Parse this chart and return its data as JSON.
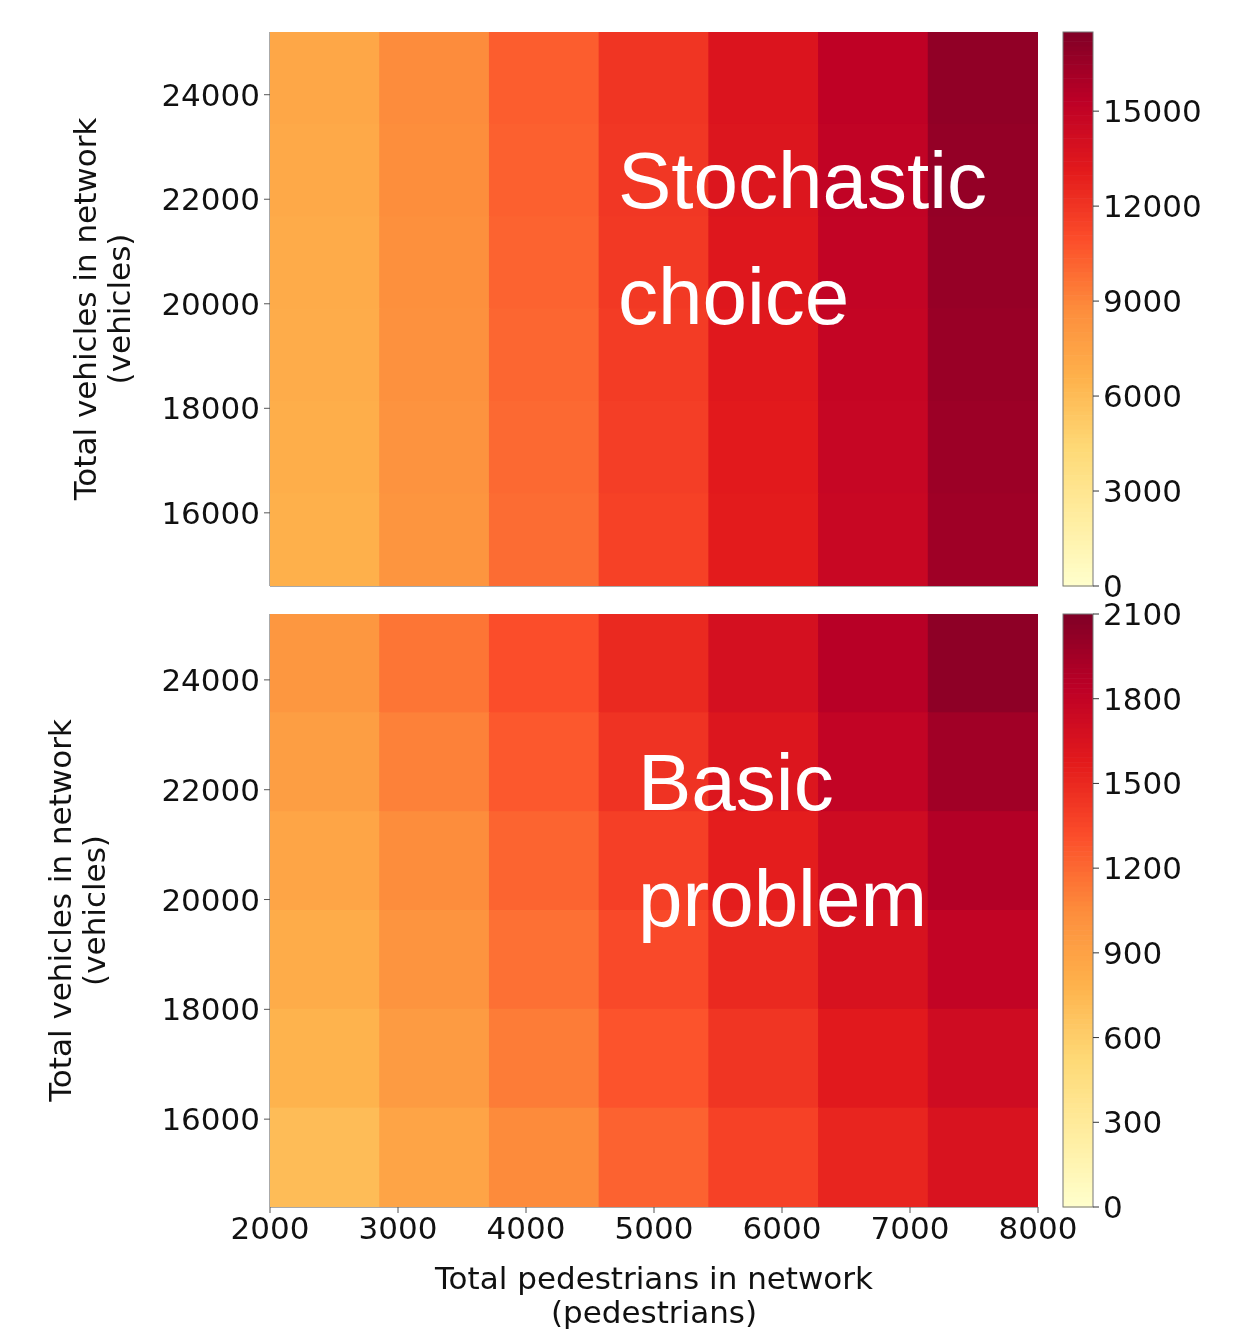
{
  "chart_data": [
    {
      "type": "heatmap",
      "ylabel": "Total vehicles in network\n(vehicles)",
      "xlim": [
        2000,
        8000
      ],
      "ylim": [
        14600,
        25200
      ],
      "yticks": [
        16000,
        18000,
        20000,
        22000,
        24000
      ],
      "tick_labels": "y",
      "clim": [
        0,
        17500
      ],
      "cticks": [
        0,
        3000,
        6000,
        9000,
        12000,
        15000
      ],
      "annotations": [
        "Stochastic choice"
      ],
      "cells": [
        [
          7200,
          8800,
          10400,
          12000,
          13600,
          15200,
          16900
        ],
        [
          7100,
          8700,
          10300,
          11900,
          13500,
          15100,
          16800
        ],
        [
          7000,
          8600,
          10200,
          11800,
          13400,
          15000,
          16700
        ],
        [
          6900,
          8500,
          10100,
          11700,
          13300,
          14900,
          16600
        ],
        [
          6800,
          8400,
          10000,
          11600,
          13200,
          14800,
          16500
        ],
        [
          6700,
          8300,
          9900,
          11500,
          13100,
          14700,
          16400
        ]
      ]
    },
    {
      "type": "heatmap",
      "xlabel": "Total pedestrians in network\n(pedestrians)",
      "ylabel": "Total vehicles in network\n(vehicles)",
      "xlim": [
        2000,
        8000
      ],
      "xticks": [
        2000,
        3000,
        4000,
        5000,
        6000,
        7000,
        8000
      ],
      "ylim": [
        14400,
        25200
      ],
      "yticks": [
        16000,
        18000,
        20000,
        22000,
        24000
      ],
      "clim": [
        0,
        2100
      ],
      "cticks": [
        0,
        300,
        600,
        900,
        1200,
        1500,
        1800,
        2100
      ],
      "annotations": [
        "Basic problem"
      ],
      "cells": [
        [
          980,
          1150,
          1320,
          1500,
          1680,
          1860,
          2040
        ],
        [
          930,
          1100,
          1270,
          1450,
          1620,
          1800,
          1960
        ],
        [
          880,
          1050,
          1220,
          1390,
          1560,
          1730,
          1880
        ],
        [
          830,
          1000,
          1170,
          1340,
          1500,
          1660,
          1800
        ],
        [
          780,
          950,
          1120,
          1290,
          1440,
          1590,
          1720
        ],
        [
          720,
          890,
          1060,
          1230,
          1380,
          1520,
          1650
        ]
      ]
    }
  ]
}
